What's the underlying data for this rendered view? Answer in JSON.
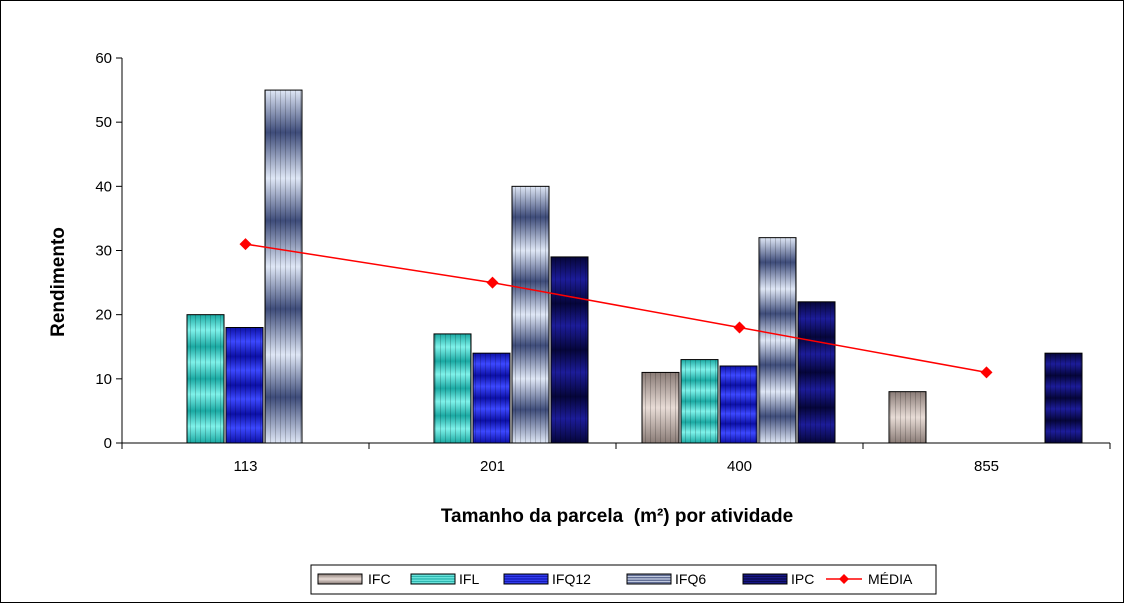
{
  "chart_data": {
    "type": "bar",
    "title": "",
    "xlabel": "Tamanho da parcela  (m²) por atividade",
    "ylabel": "Rendimento",
    "ylim": [
      0,
      60
    ],
    "yticks": [
      "0",
      "10",
      "20",
      "30",
      "40",
      "50",
      "60"
    ],
    "categories": [
      "113",
      "201",
      "400",
      "855"
    ],
    "grid": false,
    "legend_position": "bottom",
    "series": [
      {
        "name": "IFC",
        "kind": "bar",
        "color": "#b9a9a2",
        "values": [
          null,
          null,
          11,
          8
        ]
      },
      {
        "name": "IFL",
        "kind": "bar",
        "color": "#2fc7c0",
        "values": [
          20,
          17,
          13,
          null
        ]
      },
      {
        "name": "IFQ12",
        "kind": "bar",
        "color": "#1a22e0",
        "values": [
          18,
          14,
          12,
          null
        ]
      },
      {
        "name": "IFQ6",
        "kind": "bar",
        "color": "#8fa3cc",
        "values": [
          55,
          40,
          32,
          null
        ]
      },
      {
        "name": "IPC",
        "kind": "bar",
        "color": "#0a0a66",
        "values": [
          null,
          29,
          22,
          14
        ]
      },
      {
        "name": "MÉDIA",
        "kind": "line",
        "color": "#ff0000",
        "values": [
          31,
          25,
          18,
          11
        ]
      }
    ]
  }
}
